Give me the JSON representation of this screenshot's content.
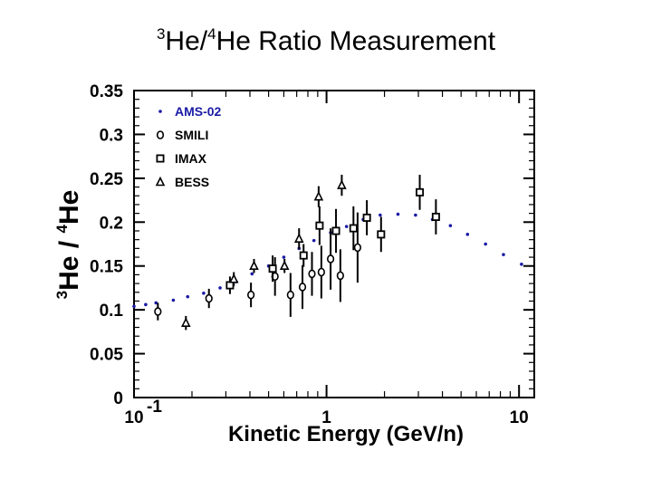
{
  "slide": {
    "title_pre_sup": "3",
    "title_he": "He/",
    "title_mid_sup": "4",
    "title_rest": "He Ratio Measurement"
  },
  "chart_data": {
    "type": "scatter",
    "title": "",
    "xlabel": "Kinetic Energy (GeV/n)",
    "ylabel": {
      "sup1": "3",
      "t1": "He / ",
      "sup2": "4",
      "t2": "He"
    },
    "xscale": "log",
    "xlim": [
      0.1,
      12
    ],
    "ylim": [
      0,
      0.35
    ],
    "grid": false,
    "legend_position": "top-left",
    "x_tick_labels": [
      {
        "value": 0.1,
        "base": "10",
        "exp": "-1"
      },
      {
        "value": 1,
        "base": "1",
        "exp": ""
      },
      {
        "value": 10,
        "base": "10",
        "exp": ""
      }
    ],
    "y_ticks": [
      0,
      0.05,
      0.1,
      0.15,
      0.2,
      0.25,
      0.3,
      0.35
    ],
    "y_tick_labels": [
      "0",
      "0.05",
      "0.1",
      "0.15",
      "0.2",
      "0.25",
      "0.3",
      "0.35"
    ],
    "series": [
      {
        "name": "AMS-02",
        "marker": "dot",
        "color": "#1a1aa6",
        "points": [
          {
            "x": 0.1,
            "y": 0.104
          },
          {
            "x": 0.115,
            "y": 0.106
          },
          {
            "x": 0.13,
            "y": 0.108
          },
          {
            "x": 0.16,
            "y": 0.111
          },
          {
            "x": 0.19,
            "y": 0.115
          },
          {
            "x": 0.23,
            "y": 0.119
          },
          {
            "x": 0.28,
            "y": 0.125
          },
          {
            "x": 0.34,
            "y": 0.132
          },
          {
            "x": 0.41,
            "y": 0.141
          },
          {
            "x": 0.5,
            "y": 0.15
          },
          {
            "x": 0.6,
            "y": 0.16
          },
          {
            "x": 0.72,
            "y": 0.17
          },
          {
            "x": 0.86,
            "y": 0.179
          },
          {
            "x": 1.05,
            "y": 0.188
          },
          {
            "x": 1.27,
            "y": 0.195
          },
          {
            "x": 1.55,
            "y": 0.203
          },
          {
            "x": 1.9,
            "y": 0.208
          },
          {
            "x": 2.35,
            "y": 0.209
          },
          {
            "x": 2.9,
            "y": 0.208
          },
          {
            "x": 3.55,
            "y": 0.203
          },
          {
            "x": 4.4,
            "y": 0.196
          },
          {
            "x": 5.4,
            "y": 0.186
          },
          {
            "x": 6.7,
            "y": 0.175
          },
          {
            "x": 8.3,
            "y": 0.163
          },
          {
            "x": 10.3,
            "y": 0.152
          }
        ]
      },
      {
        "name": "SMILI",
        "marker": "circle",
        "color": "#000000",
        "points": [
          {
            "x": 0.133,
            "y": 0.098,
            "err": 0.01
          },
          {
            "x": 0.245,
            "y": 0.113,
            "err": 0.011
          },
          {
            "x": 0.405,
            "y": 0.117,
            "err": 0.014
          },
          {
            "x": 0.54,
            "y": 0.138,
            "err": 0.022
          },
          {
            "x": 0.65,
            "y": 0.117,
            "err": 0.025
          },
          {
            "x": 0.75,
            "y": 0.126,
            "err": 0.025
          },
          {
            "x": 0.84,
            "y": 0.141,
            "err": 0.025
          },
          {
            "x": 0.94,
            "y": 0.143,
            "err": 0.03
          },
          {
            "x": 1.05,
            "y": 0.158,
            "err": 0.035
          },
          {
            "x": 1.18,
            "y": 0.139,
            "err": 0.03
          },
          {
            "x": 1.45,
            "y": 0.171,
            "err": 0.04
          }
        ]
      },
      {
        "name": "IMAX",
        "marker": "square",
        "color": "#000000",
        "points": [
          {
            "x": 0.315,
            "y": 0.128,
            "err": 0.01
          },
          {
            "x": 0.525,
            "y": 0.147,
            "err": 0.015
          },
          {
            "x": 0.76,
            "y": 0.162,
            "err": 0.013
          },
          {
            "x": 0.92,
            "y": 0.196,
            "err": 0.022
          },
          {
            "x": 1.12,
            "y": 0.19,
            "err": 0.025
          },
          {
            "x": 1.38,
            "y": 0.193,
            "err": 0.025
          },
          {
            "x": 1.62,
            "y": 0.205,
            "err": 0.02
          },
          {
            "x": 1.92,
            "y": 0.186,
            "err": 0.02
          },
          {
            "x": 3.05,
            "y": 0.234,
            "err": 0.02
          },
          {
            "x": 3.7,
            "y": 0.206,
            "err": 0.02
          }
        ]
      },
      {
        "name": "BESS",
        "marker": "triangle",
        "color": "#000000",
        "points": [
          {
            "x": 0.186,
            "y": 0.085,
            "err": 0.008
          },
          {
            "x": 0.33,
            "y": 0.135,
            "err": 0.008
          },
          {
            "x": 0.42,
            "y": 0.15,
            "err": 0.008
          },
          {
            "x": 0.605,
            "y": 0.15,
            "err": 0.008
          },
          {
            "x": 0.72,
            "y": 0.181,
            "err": 0.012
          },
          {
            "x": 0.91,
            "y": 0.229,
            "err": 0.012
          },
          {
            "x": 1.2,
            "y": 0.242,
            "err": 0.012
          }
        ]
      }
    ]
  }
}
